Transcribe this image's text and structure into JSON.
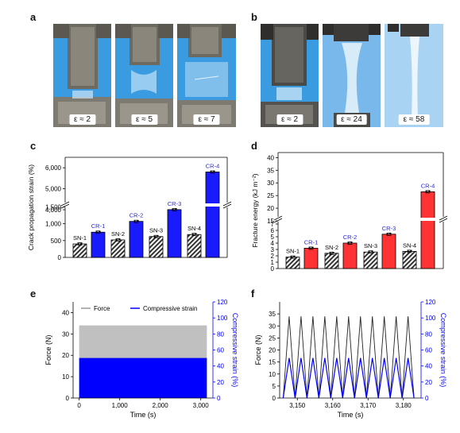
{
  "panels": {
    "a": {
      "letter": "a",
      "tags": [
        "ε ≈ 2",
        "ε ≈ 5",
        "ε ≈ 7"
      ]
    },
    "b": {
      "letter": "b",
      "tags": [
        "ε ≈ 2",
        "ε ≈ 24",
        "ε ≈ 58"
      ]
    },
    "c": {
      "letter": "c"
    },
    "d": {
      "letter": "d"
    },
    "e": {
      "letter": "e"
    },
    "f": {
      "letter": "f"
    }
  },
  "colors": {
    "sn_hatch": "#333333",
    "cr_blue": "#1a1aff",
    "cr_red": "#ff3333",
    "label_blue": "#2a2ad6",
    "force_gray": "#c0c0c0",
    "strain_blue": "#0000ff"
  },
  "chart_data": [
    {
      "panel": "c",
      "type": "bar",
      "ylabel": "Crack propagation strain (%)",
      "categories": [
        "SN-1",
        "CR-1",
        "SN-2",
        "CR-2",
        "SN-3",
        "CR-3",
        "SN-4",
        "CR-4"
      ],
      "values": [
        400,
        750,
        520,
        1070,
        620,
        1420,
        680,
        5800
      ],
      "axis_break": [
        1700,
        4000
      ],
      "yticks_lower": [
        "0",
        "500",
        "1,000",
        "1,500"
      ],
      "yticks_upper": [
        "4,000",
        "5,000",
        "6,000"
      ]
    },
    {
      "panel": "d",
      "type": "bar",
      "ylabel": "Fracture energy (kJ m⁻²)",
      "categories": [
        "SN-1",
        "CR-1",
        "SN-2",
        "CR-2",
        "SN-3",
        "CR-3",
        "SN-4",
        "CR-4"
      ],
      "values": [
        1.8,
        3.2,
        2.4,
        4.0,
        2.6,
        5.4,
        2.7,
        26.5
      ],
      "axis_break": [
        8,
        15
      ],
      "yticks_lower": [
        "0",
        "1",
        "2",
        "3",
        "4",
        "5",
        "6",
        "7"
      ],
      "yticks_upper": [
        "15",
        "20",
        "25",
        "30",
        "35",
        "40"
      ]
    },
    {
      "panel": "e",
      "type": "area",
      "xlabel": "Time (s)",
      "ylabel_left": "Force (N)",
      "ylabel_right": "Compressive strain (%)",
      "xticks": [
        "0",
        "1,000",
        "2,000",
        "3,000"
      ],
      "yticks_left": [
        "0",
        "10",
        "20",
        "30",
        "40"
      ],
      "yticks_right": [
        "0",
        "20",
        "40",
        "60",
        "80",
        "100",
        "120"
      ],
      "legend": [
        "Force",
        "Compressive strain"
      ],
      "force_range": [
        0,
        34
      ],
      "strain_range": [
        0,
        50
      ],
      "x_range": [
        0,
        3200
      ]
    },
    {
      "panel": "f",
      "type": "line",
      "xlabel": "Time (s)",
      "ylabel_left": "Force (N)",
      "ylabel_right": "Compressive strain (%)",
      "xticks": [
        "3,150",
        "3,160",
        "3,170",
        "3,180"
      ],
      "yticks_left": [
        "0",
        "5",
        "10",
        "15",
        "20",
        "25",
        "30",
        "35"
      ],
      "yticks_right": [
        "0",
        "20",
        "40",
        "60",
        "80",
        "100",
        "120"
      ],
      "x_range": [
        3145,
        3185
      ],
      "cycles": 11,
      "force_peak": 34,
      "strain_peak": 50
    }
  ]
}
